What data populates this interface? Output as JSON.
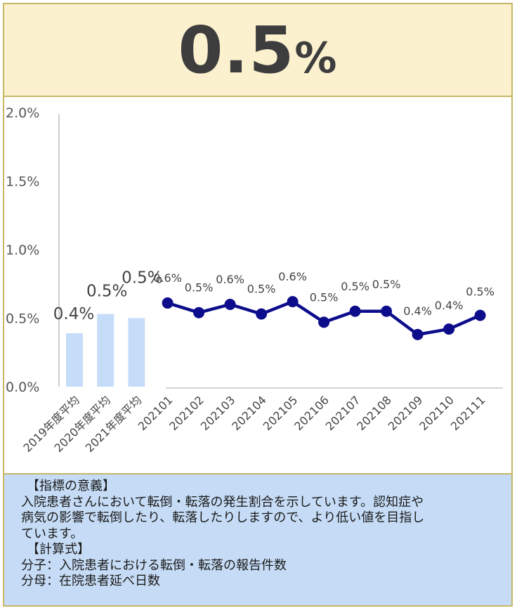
{
  "headline": {
    "value": "0.5",
    "unit": "%"
  },
  "chart_data": {
    "type": "bar+line",
    "y_ticks": [
      "2.0%",
      "1.5%",
      "1.0%",
      "0.5%",
      "0.0%"
    ],
    "ylim": [
      0,
      2.0
    ],
    "categories": [
      "2019年度平均",
      "2020年度平均",
      "2021年度平均",
      "202101",
      "202102",
      "202103",
      "202104",
      "202105",
      "202106",
      "202107",
      "202108",
      "202109",
      "202110",
      "202111"
    ],
    "bar_series": {
      "categories": [
        "2019年度平均",
        "2020年度平均",
        "2021年度平均"
      ],
      "values": [
        0.39,
        0.53,
        0.5
      ],
      "labels": [
        "0.4%",
        "0.5%",
        "0.5%"
      ],
      "color": "#c5ddf8"
    },
    "line_series": {
      "categories": [
        "202101",
        "202102",
        "202103",
        "202104",
        "202105",
        "202106",
        "202107",
        "202108",
        "202109",
        "202110",
        "202111"
      ],
      "values": [
        0.61,
        0.54,
        0.6,
        0.53,
        0.62,
        0.47,
        0.55,
        0.55,
        0.38,
        0.42,
        0.52
      ],
      "labels": [
        "0.6%",
        "0.5%",
        "0.6%",
        "0.5%",
        "0.6%",
        "0.5%",
        "0.5%",
        "0.5%",
        "0.4%",
        "0.4%",
        "0.5%"
      ],
      "color": "#0d0d8c"
    },
    "grid": false
  },
  "description": {
    "heading1": "【指標の意義】",
    "lines": [
      "入院患者さんにおいて転倒・転落の発生割合を示しています。認知症や",
      "病気の影響で転倒したり、転落したりしますので、より低い値を目指し",
      "ています。"
    ],
    "heading2": "【計算式】",
    "numerator": "分子：入院患者における転倒・転落の報告件数",
    "denominator": "分母：在院患者延べ日数"
  }
}
